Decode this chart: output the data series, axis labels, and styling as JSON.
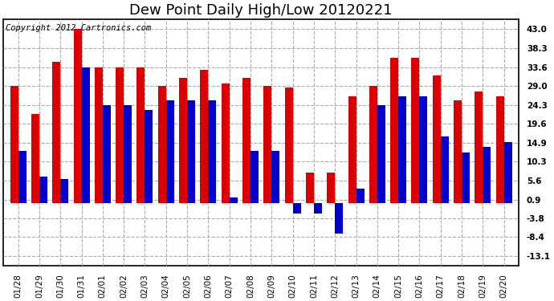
{
  "title": "Dew Point Daily High/Low 20120221",
  "copyright": "Copyright 2012 Cartronics.com",
  "dates": [
    "01/28",
    "01/29",
    "01/30",
    "01/31",
    "02/01",
    "02/02",
    "02/03",
    "02/04",
    "02/05",
    "02/06",
    "02/07",
    "02/08",
    "02/09",
    "02/10",
    "02/11",
    "02/12",
    "02/13",
    "02/14",
    "02/15",
    "02/16",
    "02/17",
    "02/18",
    "02/19",
    "02/20"
  ],
  "highs": [
    29.0,
    22.0,
    35.0,
    43.0,
    33.6,
    33.6,
    33.6,
    29.0,
    31.0,
    33.0,
    29.5,
    31.0,
    29.0,
    28.5,
    7.5,
    7.5,
    26.5,
    29.0,
    36.0,
    36.0,
    31.5,
    25.5,
    27.5,
    26.5
  ],
  "lows": [
    13.0,
    6.5,
    6.0,
    33.6,
    24.3,
    24.3,
    23.0,
    25.5,
    25.5,
    25.5,
    1.5,
    13.0,
    13.0,
    -2.5,
    -2.5,
    -7.5,
    3.5,
    24.3,
    26.5,
    26.5,
    16.5,
    12.5,
    14.0,
    15.0
  ],
  "y_ticks": [
    -13.1,
    -8.4,
    -3.8,
    0.9,
    5.6,
    10.3,
    14.9,
    19.6,
    24.3,
    29.0,
    33.6,
    38.3,
    43.0
  ],
  "ylim": [
    -15.5,
    45.5
  ],
  "bar_color_high": "#dd0000",
  "bar_color_low": "#0000cc",
  "bg_color": "#ffffff",
  "plot_bg_color": "#ffffff",
  "grid_color": "#aaaaaa",
  "title_fontsize": 13,
  "copyright_fontsize": 7.5,
  "bar_width": 0.38
}
